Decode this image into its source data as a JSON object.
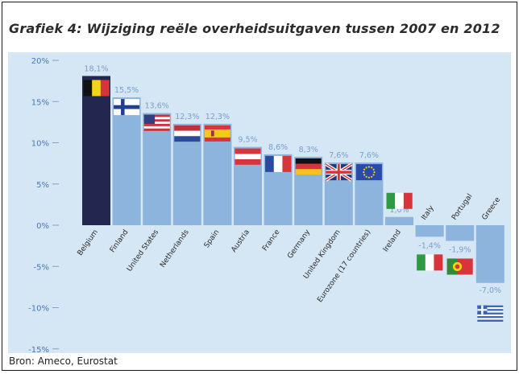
{
  "title": "Grafiek 4: Wijziging reële overheidsuitgaven tussen 2007 en 2012",
  "source": "Bron: Ameco, Eurostat",
  "chart_data": {
    "type": "bar",
    "title": "Grafiek 4: Wijziging reële overheidsuitgaven tussen 2007 en 2012",
    "xlabel": "",
    "ylabel": "",
    "ylim": [
      -15,
      20
    ],
    "yticks": [
      -15,
      -10,
      -5,
      0,
      5,
      10,
      15,
      20
    ],
    "ytick_labels": [
      "-15%",
      "-10%",
      "-5%",
      "0%",
      "5%",
      "10%",
      "15%",
      "20%"
    ],
    "grid": false,
    "categories": [
      "Belgium",
      "Finland",
      "United States",
      "Netherlands",
      "Spain",
      "Austria",
      "France",
      "Germany",
      "United Kingdom",
      "Eurozone (17 countries)",
      "Ireland",
      "Italy",
      "Portugal",
      "Greece"
    ],
    "values": [
      18.1,
      15.5,
      13.6,
      12.3,
      12.3,
      9.5,
      8.6,
      8.3,
      7.6,
      7.6,
      1.0,
      -1.4,
      -1.9,
      -7.0
    ],
    "data_labels": [
      "18,1%",
      "15,5%",
      "13,6%",
      "12,3%",
      "12,3%",
      "9,5%",
      "8,6%",
      "8,3%",
      "7,6%",
      "7,6%",
      "1,0%",
      "-1,4%",
      "-1,9%",
      "-7,0%"
    ],
    "flags": [
      "belgium-flag",
      "finland-flag",
      "usa-flag",
      "netherlands-flag",
      "spain-flag",
      "austria-flag",
      "france-flag",
      "germany-flag",
      "uk-flag",
      "eu-flag",
      "italy-flag",
      "italy-flag",
      "portugal-flag",
      "greece-flag"
    ],
    "colors": {
      "bar": "#8db4dc",
      "highlight_bar": "#232750",
      "panel": "#d5e6f4",
      "axis_text": "#4a78b4",
      "label_text": "#7aa0cc"
    }
  }
}
